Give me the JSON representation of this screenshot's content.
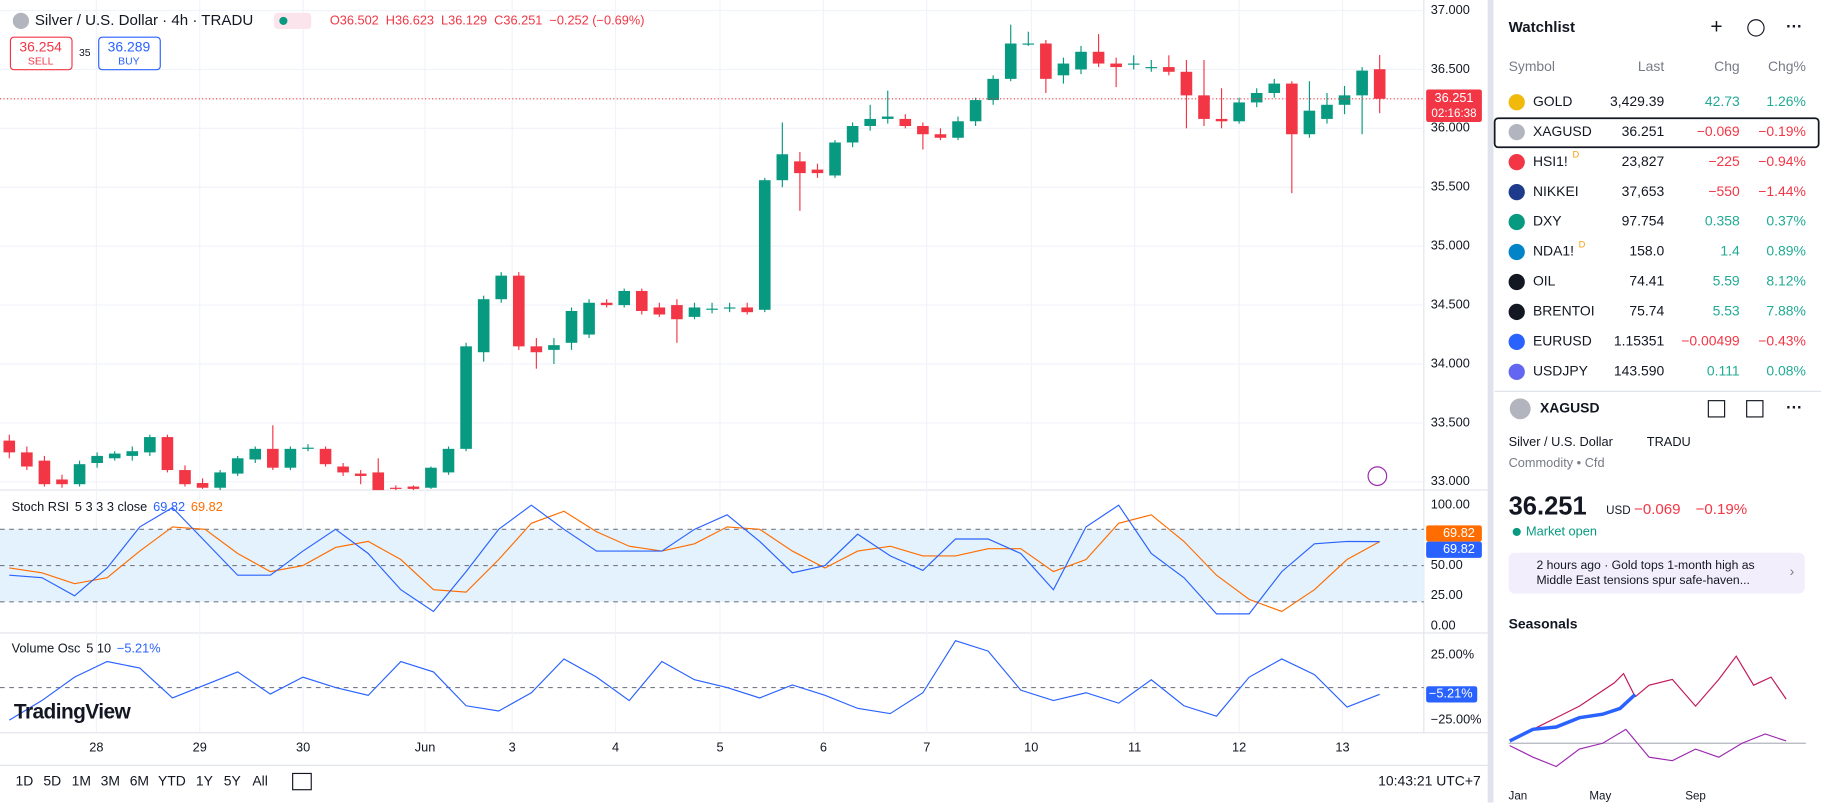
{
  "header": {
    "symbol_title": "Silver / U.S. Dollar · 4h · TRADU",
    "ohlc_legend": [
      "O36.502",
      "H36.623",
      "L36.129",
      "C36.251",
      "−0.252 (−0.69%)"
    ]
  },
  "trade": {
    "sell_price": "36.254",
    "sell": "SELL",
    "spread": "35",
    "buy_price": "36.289",
    "buy": "BUY"
  },
  "price_chart": {
    "type": "candlestick",
    "up_color": "#089981",
    "down_color": "#f23645",
    "ohlc": [
      [
        33.35,
        33.4,
        33.2,
        33.25
      ],
      [
        33.25,
        33.3,
        33.1,
        33.13
      ],
      [
        33.18,
        33.22,
        32.96,
        32.98
      ],
      [
        33.02,
        33.06,
        32.95,
        32.98
      ],
      [
        32.98,
        33.18,
        32.96,
        33.15
      ],
      [
        33.16,
        33.25,
        33.12,
        33.22
      ],
      [
        33.2,
        33.26,
        33.18,
        33.24
      ],
      [
        33.22,
        33.3,
        33.18,
        33.26
      ],
      [
        33.25,
        33.4,
        33.22,
        33.38
      ],
      [
        33.38,
        33.4,
        33.08,
        33.1
      ],
      [
        33.1,
        33.14,
        32.96,
        32.98
      ],
      [
        32.99,
        33.03,
        32.94,
        32.95
      ],
      [
        32.95,
        33.1,
        32.93,
        33.08
      ],
      [
        33.07,
        33.22,
        33.05,
        33.2
      ],
      [
        33.19,
        33.3,
        33.16,
        33.28
      ],
      [
        33.28,
        33.48,
        33.1,
        33.12
      ],
      [
        33.12,
        33.3,
        33.1,
        33.28
      ],
      [
        33.29,
        33.32,
        33.26,
        33.29
      ],
      [
        33.28,
        33.3,
        33.13,
        33.15
      ],
      [
        33.13,
        33.16,
        33.05,
        33.08
      ],
      [
        33.07,
        33.1,
        32.98,
        33.05
      ],
      [
        33.08,
        33.2,
        32.93,
        32.93
      ],
      [
        32.95,
        32.97,
        32.93,
        32.94
      ],
      [
        32.96,
        32.97,
        32.93,
        32.94
      ],
      [
        32.95,
        33.13,
        32.94,
        33.12
      ],
      [
        33.08,
        33.3,
        33.06,
        33.28
      ],
      [
        33.28,
        34.18,
        33.26,
        34.15
      ],
      [
        34.1,
        34.58,
        34.02,
        34.55
      ],
      [
        34.55,
        34.78,
        34.52,
        34.75
      ],
      [
        34.75,
        34.78,
        34.12,
        34.15
      ],
      [
        34.15,
        34.22,
        33.96,
        34.1
      ],
      [
        34.12,
        34.22,
        34.0,
        34.16
      ],
      [
        34.18,
        34.48,
        34.12,
        34.45
      ],
      [
        34.25,
        34.55,
        34.22,
        34.52
      ],
      [
        34.52,
        34.55,
        34.48,
        34.5
      ],
      [
        34.5,
        34.64,
        34.48,
        34.62
      ],
      [
        34.62,
        34.64,
        34.42,
        34.45
      ],
      [
        34.48,
        34.52,
        34.4,
        34.42
      ],
      [
        34.5,
        34.55,
        34.18,
        34.38
      ],
      [
        34.4,
        34.52,
        34.38,
        34.48
      ],
      [
        34.47,
        34.52,
        34.43,
        34.47
      ],
      [
        34.48,
        34.52,
        34.44,
        34.48
      ],
      [
        34.48,
        34.52,
        34.42,
        34.44
      ],
      [
        34.46,
        35.58,
        34.44,
        35.56
      ],
      [
        35.56,
        36.05,
        35.5,
        35.78
      ],
      [
        35.72,
        35.8,
        35.3,
        35.62
      ],
      [
        35.65,
        35.7,
        35.58,
        35.62
      ],
      [
        35.6,
        35.9,
        35.58,
        35.88
      ],
      [
        35.88,
        36.05,
        35.84,
        36.02
      ],
      [
        36.02,
        36.2,
        35.98,
        36.08
      ],
      [
        36.08,
        36.32,
        36.04,
        36.1
      ],
      [
        36.08,
        36.12,
        36.0,
        36.02
      ],
      [
        36.02,
        36.05,
        35.82,
        35.95
      ],
      [
        35.95,
        36.0,
        35.9,
        35.92
      ],
      [
        35.92,
        36.1,
        35.9,
        36.06
      ],
      [
        36.06,
        36.26,
        36.02,
        36.24
      ],
      [
        36.24,
        36.45,
        36.2,
        36.42
      ],
      [
        36.42,
        36.88,
        36.4,
        36.72
      ],
      [
        36.72,
        36.82,
        36.7,
        36.72
      ],
      [
        36.72,
        36.75,
        36.3,
        36.42
      ],
      [
        36.45,
        36.6,
        36.38,
        36.55
      ],
      [
        36.5,
        36.7,
        36.46,
        36.65
      ],
      [
        36.65,
        36.8,
        36.52,
        36.55
      ],
      [
        36.55,
        36.6,
        36.35,
        36.52
      ],
      [
        36.55,
        36.62,
        36.5,
        36.55
      ],
      [
        36.52,
        36.58,
        36.48,
        36.52
      ],
      [
        36.52,
        36.62,
        36.45,
        36.48
      ],
      [
        36.48,
        36.58,
        36.0,
        36.28
      ],
      [
        36.28,
        36.58,
        36.02,
        36.08
      ],
      [
        36.08,
        36.34,
        36.0,
        36.06
      ],
      [
        36.06,
        36.26,
        36.04,
        36.22
      ],
      [
        36.22,
        36.34,
        36.18,
        36.3
      ],
      [
        36.3,
        36.42,
        36.26,
        36.38
      ],
      [
        36.38,
        36.4,
        35.45,
        35.95
      ],
      [
        35.95,
        36.4,
        35.92,
        36.15
      ],
      [
        36.08,
        36.3,
        36.04,
        36.2
      ],
      [
        36.2,
        36.36,
        36.12,
        36.28
      ],
      [
        36.28,
        36.52,
        35.95,
        36.49
      ],
      [
        36.502,
        36.623,
        36.129,
        36.251
      ]
    ],
    "ylim": [
      32.93,
      37.04
    ],
    "yticks": [
      {
        "value": 37,
        "label": "37.000"
      },
      {
        "value": 36.5,
        "label": "36.500"
      },
      {
        "value": 36,
        "label": "36.000"
      },
      {
        "value": 35.5,
        "label": "35.500"
      },
      {
        "value": 35,
        "label": "35.000"
      },
      {
        "value": 34.5,
        "label": "34.500"
      },
      {
        "value": 34,
        "label": "34.000"
      },
      {
        "value": 33.5,
        "label": "33.500"
      },
      {
        "value": 33,
        "label": "33.000"
      }
    ],
    "last_price": {
      "value": 36.251,
      "label": "36.251"
    },
    "countdown": "02:16:38",
    "x_labels": [
      "28",
      "29",
      "30",
      "Jun",
      "3",
      "4",
      "5",
      "6",
      "7",
      "10",
      "11",
      "12",
      "13"
    ]
  },
  "stoch_rsi": {
    "type": "line",
    "title": "Stoch RSI",
    "params": "5 3 3 3 close",
    "band": [
      20,
      80
    ],
    "levels": [
      80,
      50,
      20
    ],
    "band_color": "#e3f2fd",
    "ylim": [
      -3.85,
      109.6
    ],
    "yticks": [
      {
        "value": 100,
        "label": "100.00"
      },
      {
        "value": 75,
        "label": "75.00"
      },
      {
        "value": 50,
        "label": "50.00"
      },
      {
        "value": 25,
        "label": "25.00"
      },
      {
        "value": 0,
        "label": "0.00"
      }
    ],
    "series": [
      {
        "color": "#2962ff",
        "values": [
          42,
          40,
          25,
          48,
          82,
          98,
          70,
          42,
          42,
          62,
          80,
          60,
          30,
          12,
          45,
          80,
          100,
          80,
          62,
          62,
          62,
          80,
          92,
          70,
          44,
          50,
          76,
          58,
          46,
          72,
          72,
          60,
          30,
          82,
          100,
          60,
          40,
          10,
          10,
          45,
          68,
          70,
          69.82
        ]
      },
      {
        "color": "#ff6d00",
        "values": [
          48,
          44,
          35,
          40,
          62,
          82,
          80,
          60,
          45,
          50,
          65,
          70,
          55,
          30,
          28,
          55,
          85,
          95,
          78,
          66,
          62,
          68,
          82,
          80,
          62,
          48,
          62,
          66,
          58,
          58,
          64,
          64,
          45,
          55,
          85,
          92,
          70,
          42,
          22,
          12,
          30,
          55,
          69.82
        ]
      }
    ]
  },
  "volume_osc": {
    "type": "line",
    "title": "Volume Osc",
    "params": "5 10",
    "color": "#2962ff",
    "level": 0,
    "ylim": [
      -33.9,
      40.2
    ],
    "yticks": [
      {
        "value": 25,
        "label": "25.00%"
      },
      {
        "value": -25,
        "label": "−25.00%"
      }
    ],
    "values": [
      -25,
      -10,
      8,
      20,
      15,
      -8,
      2,
      12,
      -5,
      8,
      0,
      -6,
      20,
      12,
      -14,
      -18,
      -4,
      22,
      8,
      -10,
      20,
      6,
      0,
      -8,
      2,
      -6,
      -16,
      -20,
      -4,
      36,
      28,
      -2,
      -10,
      -4,
      -12,
      6,
      -14,
      -22,
      8,
      22,
      10,
      -15,
      -5.21
    ],
    "value_labels": [
      null,
      null,
      null,
      null,
      null,
      null,
      null,
      null,
      null,
      null,
      null,
      null,
      null,
      null,
      null,
      null,
      null,
      null,
      null,
      null,
      null,
      null,
      null,
      null,
      null,
      null,
      null,
      null,
      null,
      null,
      null,
      null,
      null,
      null,
      null,
      null,
      null,
      null,
      null,
      null,
      null,
      null,
      "−5.21%"
    ]
  },
  "brand": "TradingView",
  "toolbar": {
    "ranges": [
      "1D",
      "5D",
      "1M",
      "3M",
      "6M",
      "YTD",
      "1Y",
      "5Y",
      "All"
    ],
    "clock": "10:43:21 UTC+7"
  },
  "watchlist": {
    "title": "Watchlist",
    "columns": [
      "Symbol",
      "Last",
      "Chg",
      "Chg%"
    ],
    "rows": [
      {
        "symbol": "GOLD",
        "last": "3,429.39",
        "chg": "42.73",
        "chg_pct": "1.26%"
      },
      {
        "symbol": "XAGUSD",
        "last": "36.251",
        "chg": "−0.069",
        "chg_pct": "−0.19%"
      },
      {
        "symbol": "HSI1!",
        "badge": "D",
        "last": "23,827",
        "chg": "−225",
        "chg_pct": "−0.94%"
      },
      {
        "symbol": "NIKKEI",
        "last": "37,653",
        "chg": "−550",
        "chg_pct": "−1.44%"
      },
      {
        "symbol": "DXY",
        "last": "97.754",
        "chg": "0.358",
        "chg_pct": "0.37%"
      },
      {
        "symbol": "NDA1!",
        "badge": "D",
        "last": "158.0",
        "chg": "1.4",
        "chg_pct": "0.89%"
      },
      {
        "symbol": "OIL",
        "last": "74.41",
        "chg": "5.59",
        "chg_pct": "8.12%"
      },
      {
        "symbol": "BRENTOI",
        "last": "75.74",
        "chg": "5.53",
        "chg_pct": "7.88%"
      },
      {
        "symbol": "EURUSD",
        "last": "1.15351",
        "chg": "−0.00499",
        "chg_pct": "−0.43%"
      },
      {
        "symbol": "USDJPY",
        "last": "143.590",
        "chg": "0.111",
        "chg_pct": "0.08%"
      }
    ]
  },
  "details": {
    "symbol": "XAGUSD",
    "name": "Silver / U.S. Dollar",
    "exchange": "TRADU",
    "category": "Commodity • Cfd",
    "price": "36.251",
    "currency": "USD",
    "change": "−0.069",
    "change_pct": "−0.19%",
    "status": "Market open",
    "news": {
      "lines": [
        "2 hours ago · Gold tops 1-month high as",
        "Middle East tensions spur safe-haven..."
      ]
    }
  },
  "seasonals": {
    "title": "Seasonals",
    "x_labels": [
      "Jan",
      "May",
      "Sep"
    ]
  }
}
